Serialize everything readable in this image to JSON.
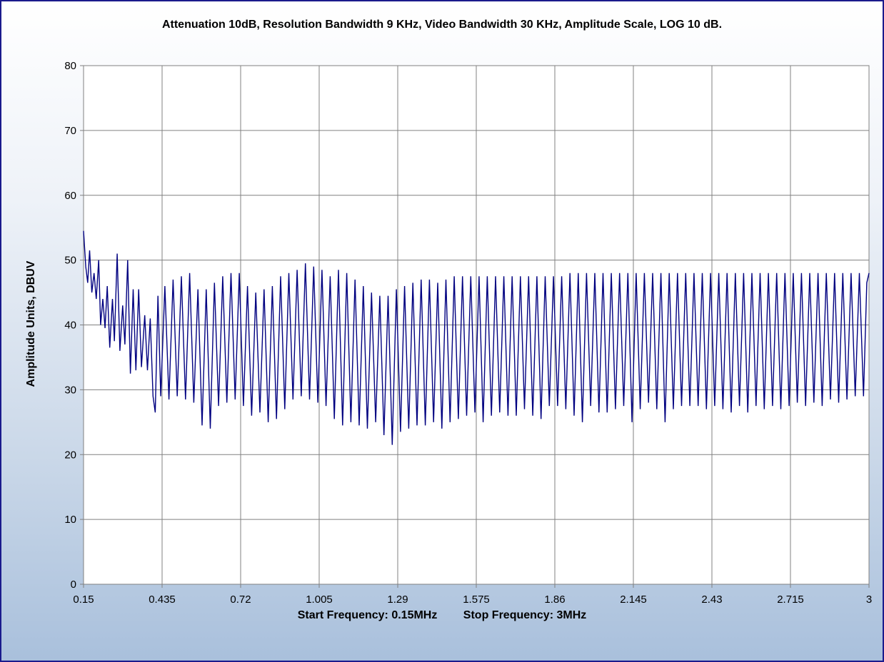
{
  "chart_data": {
    "type": "line",
    "title": "Attenuation 10dB, Resolution Bandwidth 9 KHz, Video Bandwidth 30 KHz, Amplitude Scale, LOG 10 dB.",
    "ylabel": "Amplitude Units, DBUV",
    "footer": {
      "start": "Start Frequency: 0.15MHz",
      "stop": "Stop Frequency: 3MHz"
    },
    "xlim": [
      0.15,
      3
    ],
    "ylim": [
      0,
      80
    ],
    "x_ticks": [
      "0.15",
      "0.435",
      "0.72",
      "1.005",
      "1.29",
      "1.575",
      "1.86",
      "2.145",
      "2.43",
      "2.715",
      "3"
    ],
    "y_ticks": [
      "0",
      "10",
      "20",
      "30",
      "40",
      "50",
      "60",
      "70",
      "80"
    ],
    "grid": true,
    "line_color": "#000080",
    "series_points": [
      [
        0.15,
        54.5
      ],
      [
        0.158,
        49
      ],
      [
        0.165,
        46.5
      ],
      [
        0.172,
        51.5
      ],
      [
        0.18,
        45
      ],
      [
        0.188,
        48
      ],
      [
        0.196,
        44
      ],
      [
        0.205,
        50
      ],
      [
        0.212,
        40
      ],
      [
        0.22,
        44
      ],
      [
        0.228,
        39.5
      ],
      [
        0.236,
        46
      ],
      [
        0.245,
        36.5
      ],
      [
        0.255,
        44
      ],
      [
        0.262,
        37.5
      ],
      [
        0.272,
        51
      ],
      [
        0.282,
        36
      ],
      [
        0.292,
        43
      ],
      [
        0.3,
        37
      ],
      [
        0.31,
        50
      ],
      [
        0.32,
        32.5
      ],
      [
        0.33,
        45.5
      ],
      [
        0.34,
        33
      ],
      [
        0.35,
        45.5
      ],
      [
        0.36,
        33.5
      ],
      [
        0.372,
        41.5
      ],
      [
        0.382,
        33
      ],
      [
        0.392,
        41
      ],
      [
        0.402,
        29
      ],
      [
        0.41,
        26.5
      ],
      [
        0.42,
        44.5
      ],
      [
        0.43,
        29
      ],
      [
        0.445,
        46
      ],
      [
        0.46,
        28.5
      ],
      [
        0.475,
        47
      ],
      [
        0.49,
        29
      ],
      [
        0.505,
        47.5
      ],
      [
        0.52,
        28.5
      ],
      [
        0.535,
        48
      ],
      [
        0.55,
        28
      ],
      [
        0.565,
        45.5
      ],
      [
        0.58,
        24.5
      ],
      [
        0.595,
        45.5
      ],
      [
        0.61,
        24
      ],
      [
        0.625,
        46.5
      ],
      [
        0.64,
        27.5
      ],
      [
        0.655,
        47.5
      ],
      [
        0.67,
        28
      ],
      [
        0.685,
        48
      ],
      [
        0.7,
        28.5
      ],
      [
        0.715,
        48
      ],
      [
        0.73,
        27.5
      ],
      [
        0.745,
        46
      ],
      [
        0.76,
        26
      ],
      [
        0.775,
        45
      ],
      [
        0.79,
        26.5
      ],
      [
        0.805,
        45.5
      ],
      [
        0.82,
        25
      ],
      [
        0.835,
        46
      ],
      [
        0.85,
        25.5
      ],
      [
        0.865,
        47.5
      ],
      [
        0.88,
        27
      ],
      [
        0.895,
        48
      ],
      [
        0.91,
        28.5
      ],
      [
        0.925,
        48.5
      ],
      [
        0.94,
        29
      ],
      [
        0.955,
        49.5
      ],
      [
        0.97,
        28.5
      ],
      [
        0.985,
        49
      ],
      [
        1.0,
        28
      ],
      [
        1.015,
        48.5
      ],
      [
        1.03,
        27.5
      ],
      [
        1.045,
        47.5
      ],
      [
        1.06,
        25.5
      ],
      [
        1.075,
        48.5
      ],
      [
        1.09,
        24.5
      ],
      [
        1.105,
        48
      ],
      [
        1.12,
        25
      ],
      [
        1.135,
        47
      ],
      [
        1.15,
        24.5
      ],
      [
        1.165,
        46
      ],
      [
        1.18,
        24
      ],
      [
        1.195,
        45
      ],
      [
        1.21,
        25
      ],
      [
        1.225,
        44.5
      ],
      [
        1.24,
        23
      ],
      [
        1.255,
        44.5
      ],
      [
        1.27,
        21.5
      ],
      [
        1.285,
        45.5
      ],
      [
        1.3,
        23.5
      ],
      [
        1.315,
        46
      ],
      [
        1.33,
        24
      ],
      [
        1.345,
        46.5
      ],
      [
        1.36,
        24.5
      ],
      [
        1.375,
        47
      ],
      [
        1.39,
        24.5
      ],
      [
        1.405,
        47
      ],
      [
        1.42,
        25
      ],
      [
        1.435,
        46.5
      ],
      [
        1.45,
        24
      ],
      [
        1.465,
        47
      ],
      [
        1.48,
        25
      ],
      [
        1.495,
        47.5
      ],
      [
        1.51,
        25.5
      ],
      [
        1.525,
        47.5
      ],
      [
        1.54,
        26
      ],
      [
        1.555,
        47.5
      ],
      [
        1.57,
        26.5
      ],
      [
        1.585,
        47.5
      ],
      [
        1.6,
        25
      ],
      [
        1.615,
        47.5
      ],
      [
        1.63,
        26
      ],
      [
        1.645,
        47.5
      ],
      [
        1.66,
        26.5
      ],
      [
        1.675,
        47.5
      ],
      [
        1.69,
        26
      ],
      [
        1.705,
        47.5
      ],
      [
        1.72,
        26
      ],
      [
        1.735,
        47.5
      ],
      [
        1.75,
        27
      ],
      [
        1.765,
        47.5
      ],
      [
        1.78,
        26
      ],
      [
        1.795,
        47.5
      ],
      [
        1.81,
        25.5
      ],
      [
        1.825,
        47.5
      ],
      [
        1.84,
        27.5
      ],
      [
        1.855,
        47.5
      ],
      [
        1.87,
        27.5
      ],
      [
        1.885,
        47.5
      ],
      [
        1.9,
        27
      ],
      [
        1.915,
        48
      ],
      [
        1.93,
        26
      ],
      [
        1.945,
        48
      ],
      [
        1.96,
        25
      ],
      [
        1.975,
        48
      ],
      [
        1.99,
        27.5
      ],
      [
        2.005,
        48
      ],
      [
        2.02,
        26.5
      ],
      [
        2.035,
        48
      ],
      [
        2.05,
        26.5
      ],
      [
        2.065,
        48
      ],
      [
        2.08,
        27
      ],
      [
        2.095,
        48
      ],
      [
        2.11,
        27.5
      ],
      [
        2.125,
        48
      ],
      [
        2.14,
        25
      ],
      [
        2.155,
        48
      ],
      [
        2.17,
        27
      ],
      [
        2.185,
        48
      ],
      [
        2.2,
        28
      ],
      [
        2.215,
        48
      ],
      [
        2.23,
        27
      ],
      [
        2.245,
        48
      ],
      [
        2.26,
        25
      ],
      [
        2.275,
        48
      ],
      [
        2.29,
        27
      ],
      [
        2.305,
        48
      ],
      [
        2.32,
        27.5
      ],
      [
        2.335,
        48
      ],
      [
        2.35,
        27.5
      ],
      [
        2.365,
        48
      ],
      [
        2.38,
        27.5
      ],
      [
        2.395,
        48
      ],
      [
        2.41,
        27
      ],
      [
        2.425,
        48
      ],
      [
        2.44,
        27.5
      ],
      [
        2.455,
        48
      ],
      [
        2.47,
        27
      ],
      [
        2.485,
        48
      ],
      [
        2.5,
        26.5
      ],
      [
        2.515,
        48
      ],
      [
        2.53,
        27.5
      ],
      [
        2.545,
        48
      ],
      [
        2.56,
        26.5
      ],
      [
        2.575,
        48
      ],
      [
        2.59,
        27.5
      ],
      [
        2.605,
        48
      ],
      [
        2.62,
        27
      ],
      [
        2.635,
        48
      ],
      [
        2.65,
        27.5
      ],
      [
        2.665,
        48
      ],
      [
        2.68,
        27
      ],
      [
        2.695,
        48
      ],
      [
        2.71,
        27.5
      ],
      [
        2.725,
        48
      ],
      [
        2.74,
        28
      ],
      [
        2.755,
        48
      ],
      [
        2.77,
        27.5
      ],
      [
        2.785,
        48
      ],
      [
        2.8,
        28
      ],
      [
        2.815,
        48
      ],
      [
        2.83,
        27.5
      ],
      [
        2.845,
        48
      ],
      [
        2.86,
        28.5
      ],
      [
        2.875,
        48
      ],
      [
        2.89,
        28
      ],
      [
        2.905,
        48
      ],
      [
        2.92,
        28.5
      ],
      [
        2.935,
        48
      ],
      [
        2.95,
        29
      ],
      [
        2.965,
        48
      ],
      [
        2.98,
        29
      ],
      [
        2.992,
        46.5
      ],
      [
        3.0,
        48
      ]
    ]
  }
}
